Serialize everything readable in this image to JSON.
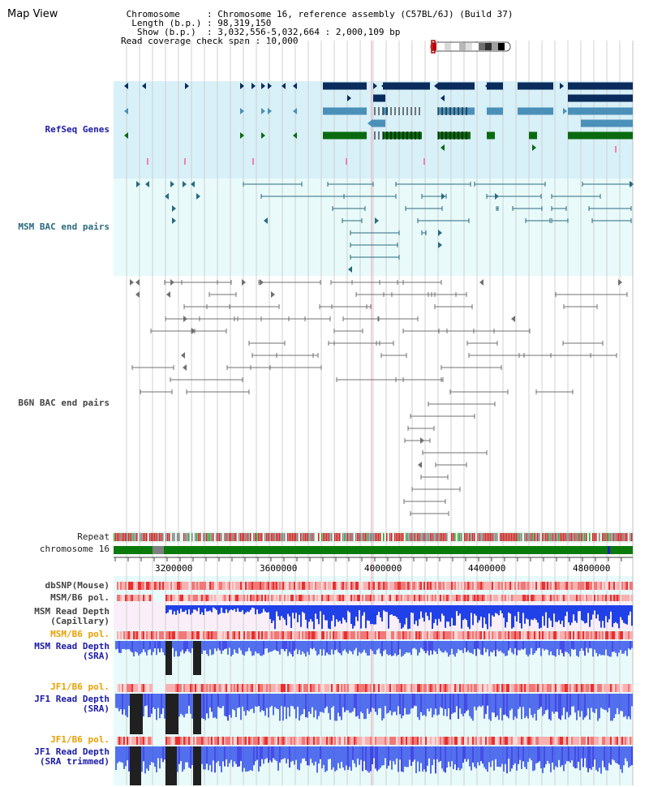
{
  "header": {
    "title": "Map View",
    "info_lines": [
      " Chromosome     : Chromosome 16, reference assembly (C57BL/6J) (Build 37)",
      "  Length (b.p.) : 98,319,150",
      "   Show (b.p.)  : 3,032,556-5,032,664 : 2,000,109 bp",
      "Read coverage check span : 10,000"
    ]
  },
  "tracks": {
    "refseq": "RefSeq Genes",
    "msm_bac": "MSM BAC end pairs",
    "b6n_bac": "B6N BAC end pairs",
    "repeat": "Repeat",
    "chromosome": "chromosome 16",
    "dbsnp": "dbSNP(Mouse)",
    "msm_b6_pol_1": "MSM/B6 pol.",
    "msm_depth_cap": "MSM Read Depth\n(Capillary)",
    "msm_b6_pol_2": "MSM/B6 pol.",
    "msm_depth_sra": "MSM Read Depth\n(SRA)",
    "jf1_b6_pol_1": "JF1/B6 pol.",
    "jf1_depth_sra": "JF1 Read Depth\n(SRA)",
    "jf1_b6_pol_2": "JF1/B6 pol.",
    "jf1_depth_trim": "JF1 Read Depth\n(SRA trimmed)"
  },
  "axis": {
    "ticks": [
      "3200000",
      "3600000",
      "4000000",
      "4400000",
      "4800000"
    ]
  },
  "colors": {
    "refseq_bg": "#d8f0f8",
    "bac_bg": "#e8fafa",
    "navy": "#0a2c5c",
    "steel": "#4a90b8",
    "green": "#0a6a10",
    "teal": "#2a6a80",
    "gray": "#707070",
    "chrom": "#0a7a0a",
    "depth": "#2040e8"
  }
}
